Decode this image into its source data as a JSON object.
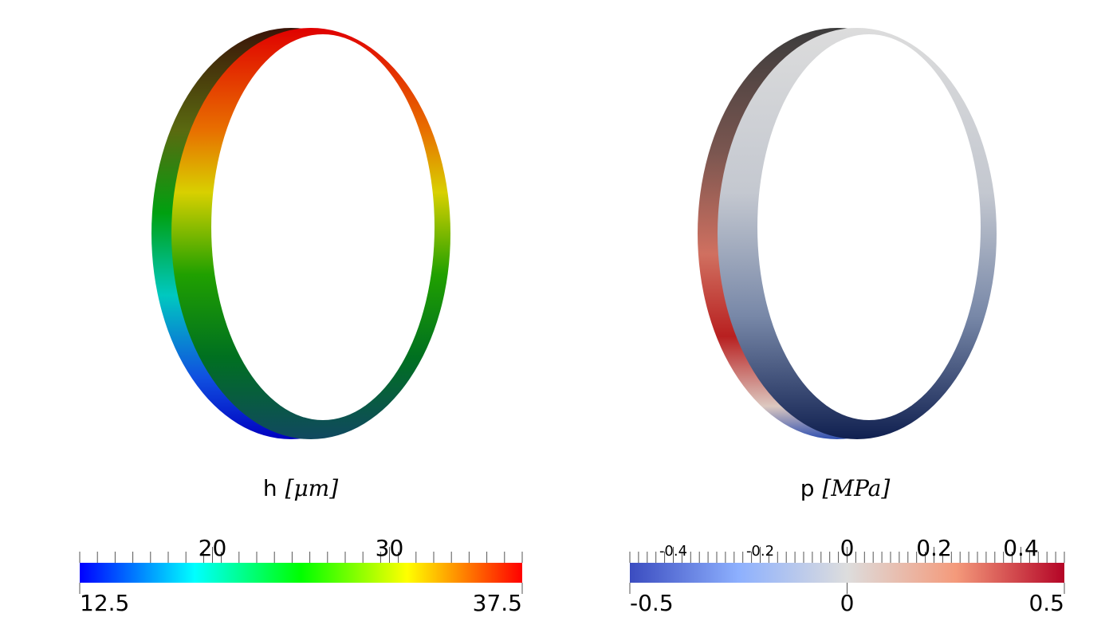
{
  "panels": [
    {
      "variable": "h",
      "unit": "[μm]",
      "colorbar": {
        "range": [
          12.5,
          37.5
        ],
        "top_ticks": [
          20,
          30
        ],
        "bottom_ticks": [
          12.5,
          37.5
        ]
      }
    },
    {
      "variable": "p",
      "unit": "[MPa]",
      "colorbar": {
        "range": [
          -0.5,
          0.5
        ],
        "small_top_ticks": [
          -0.4,
          -0.2
        ],
        "top_ticks": [
          0,
          0.2,
          0.4
        ],
        "bottom_ticks": [
          -0.5,
          0,
          0.5
        ]
      }
    }
  ]
}
